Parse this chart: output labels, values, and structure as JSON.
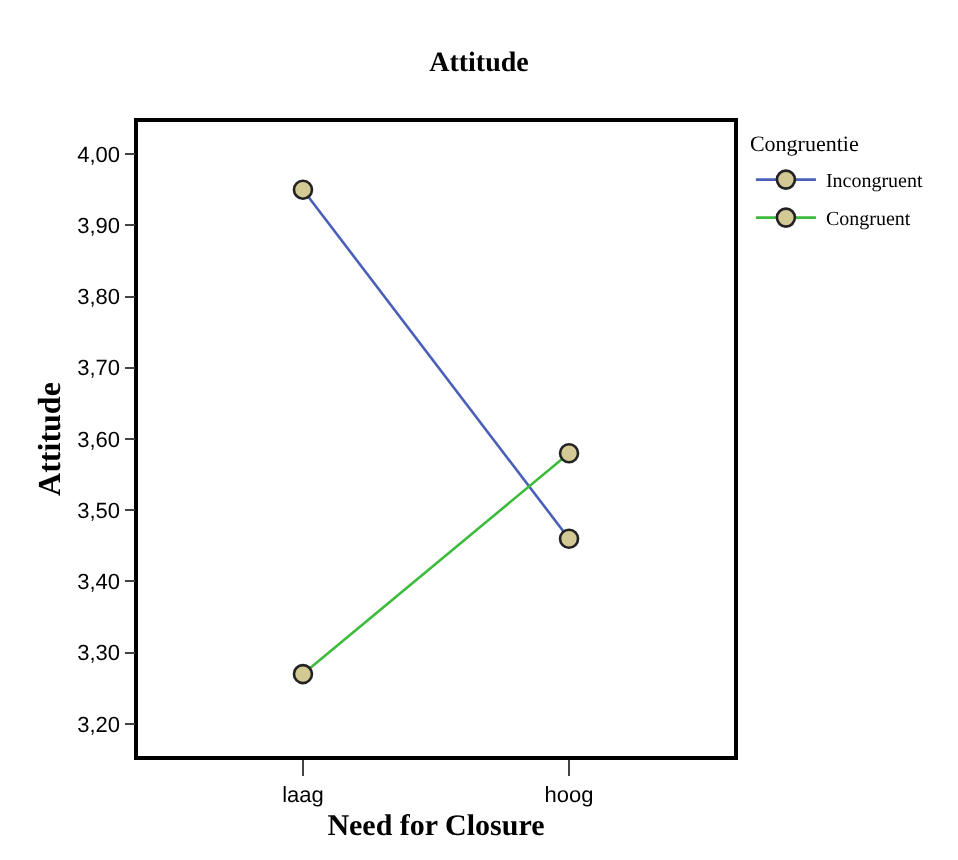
{
  "chart_data": {
    "type": "line",
    "title": "Attitude",
    "xlabel": "Need for Closure",
    "ylabel": "Attitude",
    "legend_title": "Congruentie",
    "categories": [
      "laag",
      "hoog"
    ],
    "series": [
      {
        "name": "Incongruent",
        "color": "#4a5fb8",
        "values": [
          3.95,
          3.46
        ]
      },
      {
        "name": "Congruent",
        "color": "#3dbb3d",
        "values": [
          3.27,
          3.58
        ]
      }
    ],
    "ylim": [
      3.155,
      4.045
    ],
    "yticks": [
      {
        "value": 3.2,
        "label": "3,20"
      },
      {
        "value": 3.3,
        "label": "3,30"
      },
      {
        "value": 3.4,
        "label": "3,40"
      },
      {
        "value": 3.5,
        "label": "3,50"
      },
      {
        "value": 3.6,
        "label": "3,60"
      },
      {
        "value": 3.7,
        "label": "3,70"
      },
      {
        "value": 3.8,
        "label": "3,80"
      },
      {
        "value": 3.9,
        "label": "3,90"
      },
      {
        "value": 4.0,
        "label": "4,00"
      }
    ],
    "marker": "circle",
    "line_style": "solid",
    "legend": "top right"
  }
}
